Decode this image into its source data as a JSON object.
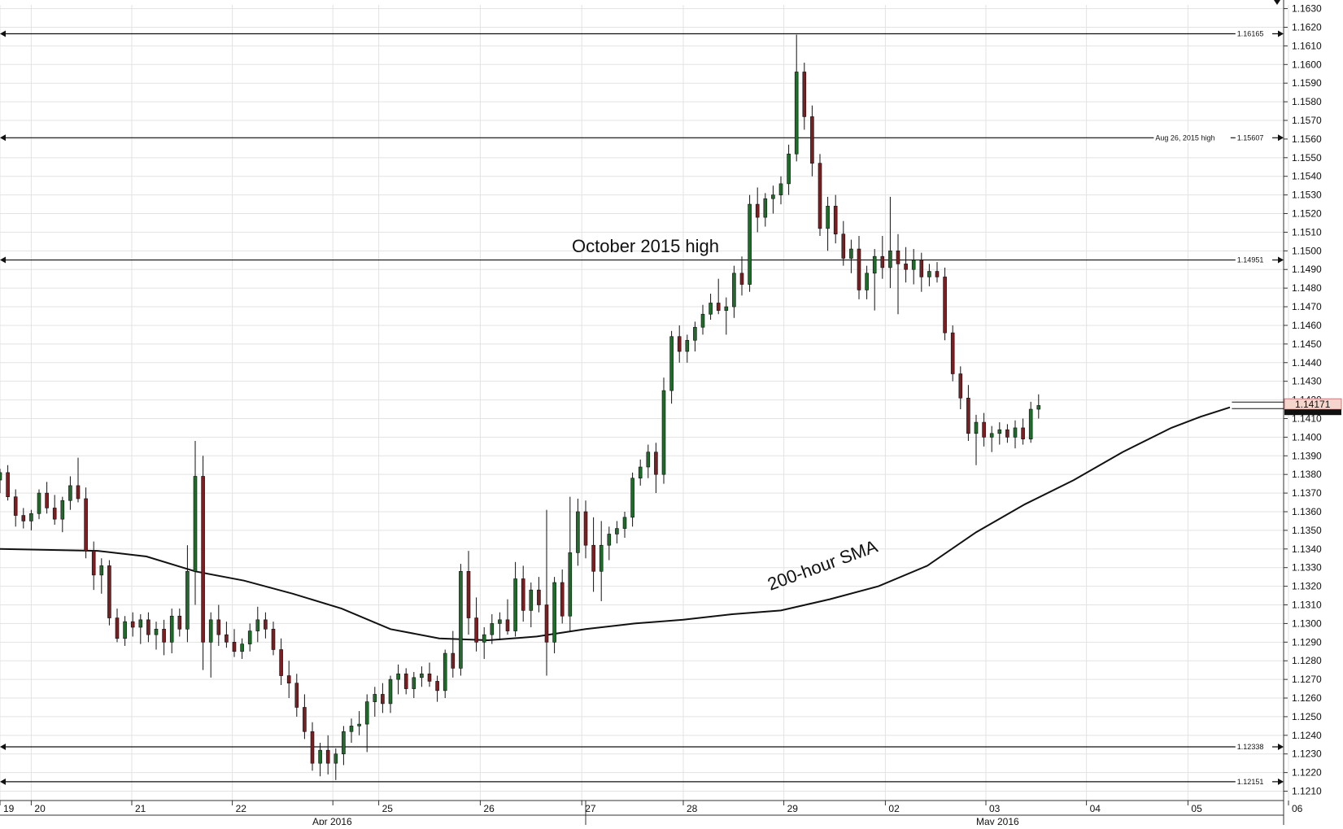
{
  "chart_data": {
    "type": "candlestick",
    "title": "",
    "xlabel": "",
    "ylabel": "",
    "ylim": [
      1.205,
      1.163
    ],
    "y_ticks": [
      "1.1630",
      "1.1620",
      "1.1610",
      "1.1600",
      "1.1590",
      "1.1580",
      "1.1570",
      "1.1560",
      "1.1550",
      "1.1540",
      "1.1530",
      "1.1520",
      "1.1510",
      "1.1500",
      "1.1490",
      "1.1480",
      "1.1470",
      "1.1460",
      "1.1450",
      "1.1440",
      "1.1430",
      "1.1420",
      "1.1410",
      "1.1400",
      "1.1390",
      "1.1380",
      "1.1370",
      "1.1360",
      "1.1350",
      "1.1340",
      "1.1330",
      "1.1320",
      "1.1310",
      "1.1300",
      "1.1290",
      "1.1280",
      "1.1270",
      "1.1260",
      "1.1250",
      "1.1240",
      "1.1230",
      "1.1220",
      "1.1210"
    ],
    "x_day_ticks": [
      "19",
      "20",
      "21",
      "22",
      "",
      "25",
      "26",
      "27",
      "28",
      "29",
      "02",
      "03",
      "04",
      "05",
      "06"
    ],
    "x_month_labels": [
      "Apr 2016",
      "May 2016"
    ],
    "current_price": "1.14171",
    "levels": [
      {
        "name": "level-1-16165",
        "value": 1.16165,
        "label": "1.16165",
        "note": ""
      },
      {
        "name": "level-1-15607",
        "value": 1.15607,
        "label": "1.15607",
        "note": "Aug 26, 2015 high"
      },
      {
        "name": "level-1-14951",
        "value": 1.14951,
        "label": "1.14951",
        "note": ""
      },
      {
        "name": "level-1-12338",
        "value": 1.12338,
        "label": "1.12338",
        "note": ""
      },
      {
        "name": "level-1-12151",
        "value": 1.12151,
        "label": "1.12151",
        "note": ""
      }
    ],
    "annotations": {
      "october_high": "October 2015 high",
      "sma_label": "200-hour SMA"
    },
    "sma_200": [
      [
        19.0,
        1.134
      ],
      [
        20.0,
        1.1339
      ],
      [
        20.5,
        1.1336
      ],
      [
        21.0,
        1.1328
      ],
      [
        21.5,
        1.1323
      ],
      [
        22.0,
        1.1316
      ],
      [
        22.5,
        1.1308
      ],
      [
        23.0,
        1.1297
      ],
      [
        23.5,
        1.1292
      ],
      [
        24.0,
        1.1291
      ],
      [
        24.5,
        1.1293
      ],
      [
        25.0,
        1.1297
      ],
      [
        25.5,
        1.13
      ],
      [
        26.0,
        1.1302
      ],
      [
        26.5,
        1.1305
      ],
      [
        27.0,
        1.1307
      ],
      [
        27.5,
        1.1313
      ],
      [
        28.0,
        1.132
      ],
      [
        28.5,
        1.1331
      ],
      [
        29.0,
        1.1349
      ],
      [
        29.5,
        1.1364
      ],
      [
        30.0,
        1.1377
      ],
      [
        30.5,
        1.1392
      ],
      [
        31.0,
        1.1405
      ],
      [
        31.3,
        1.1411
      ],
      [
        31.6,
        1.1416
      ]
    ],
    "candles": [
      [
        19.0,
        1.1377,
        1.1383,
        1.137,
        1.1381
      ],
      [
        19.08,
        1.1381,
        1.1385,
        1.1366,
        1.1368
      ],
      [
        19.16,
        1.1368,
        1.1372,
        1.1352,
        1.1358
      ],
      [
        19.24,
        1.1358,
        1.1362,
        1.1351,
        1.1355
      ],
      [
        19.32,
        1.1355,
        1.1361,
        1.135,
        1.1359
      ],
      [
        19.4,
        1.1359,
        1.1372,
        1.1356,
        1.137
      ],
      [
        19.48,
        1.137,
        1.1376,
        1.1359,
        1.1362
      ],
      [
        19.56,
        1.1362,
        1.1369,
        1.1353,
        1.1356
      ],
      [
        19.64,
        1.1356,
        1.1368,
        1.1349,
        1.1366
      ],
      [
        19.72,
        1.1366,
        1.1379,
        1.1361,
        1.1374
      ],
      [
        19.8,
        1.1374,
        1.1389,
        1.1365,
        1.1367
      ],
      [
        19.88,
        1.1367,
        1.1373,
        1.1335,
        1.1339
      ],
      [
        19.96,
        1.1339,
        1.1344,
        1.1318,
        1.1326
      ],
      [
        20.04,
        1.1326,
        1.1335,
        1.1316,
        1.1331
      ],
      [
        20.12,
        1.1331,
        1.1334,
        1.1299,
        1.1303
      ],
      [
        20.2,
        1.1303,
        1.1308,
        1.129,
        1.1292
      ],
      [
        20.28,
        1.1292,
        1.1304,
        1.1288,
        1.1301
      ],
      [
        20.36,
        1.1301,
        1.1306,
        1.1293,
        1.1298
      ],
      [
        20.44,
        1.1298,
        1.1305,
        1.1289,
        1.1302
      ],
      [
        20.52,
        1.1302,
        1.1306,
        1.129,
        1.1294
      ],
      [
        20.6,
        1.1294,
        1.1301,
        1.1286,
        1.1297
      ],
      [
        20.68,
        1.1297,
        1.1302,
        1.1283,
        1.129
      ],
      [
        20.76,
        1.129,
        1.1308,
        1.1284,
        1.1304
      ],
      [
        20.84,
        1.1304,
        1.1308,
        1.1293,
        1.1297
      ],
      [
        20.92,
        1.1297,
        1.1342,
        1.129,
        1.1328
      ],
      [
        21.0,
        1.1328,
        1.1398,
        1.131,
        1.1379
      ],
      [
        21.08,
        1.1379,
        1.139,
        1.1275,
        1.129
      ],
      [
        21.16,
        1.129,
        1.1306,
        1.1271,
        1.1302
      ],
      [
        21.24,
        1.1302,
        1.131,
        1.1288,
        1.1294
      ],
      [
        21.32,
        1.1294,
        1.1301,
        1.1287,
        1.129
      ],
      [
        21.4,
        1.129,
        1.1297,
        1.1282,
        1.1285
      ],
      [
        21.48,
        1.1285,
        1.1292,
        1.1281,
        1.1289
      ],
      [
        21.56,
        1.1289,
        1.13,
        1.1285,
        1.1296
      ],
      [
        21.64,
        1.1296,
        1.1309,
        1.129,
        1.1302
      ],
      [
        21.72,
        1.1302,
        1.1306,
        1.1292,
        1.1297
      ],
      [
        21.8,
        1.1297,
        1.1301,
        1.1283,
        1.1286
      ],
      [
        21.88,
        1.1286,
        1.1292,
        1.1267,
        1.1272
      ],
      [
        21.96,
        1.1272,
        1.128,
        1.126,
        1.1268
      ],
      [
        22.04,
        1.1268,
        1.1273,
        1.125,
        1.1255
      ],
      [
        22.12,
        1.1255,
        1.1262,
        1.1238,
        1.1242
      ],
      [
        22.2,
        1.1242,
        1.1247,
        1.1221,
        1.1225
      ],
      [
        22.28,
        1.1225,
        1.1236,
        1.1218,
        1.1232
      ],
      [
        22.36,
        1.1232,
        1.124,
        1.1219,
        1.1225
      ],
      [
        22.44,
        1.1225,
        1.1233,
        1.1216,
        1.123
      ],
      [
        22.52,
        1.123,
        1.1245,
        1.1224,
        1.1242
      ],
      [
        22.6,
        1.1242,
        1.1249,
        1.1236,
        1.1245
      ],
      [
        22.68,
        1.1245,
        1.1253,
        1.124,
        1.1246
      ],
      [
        22.76,
        1.1246,
        1.1262,
        1.1231,
        1.1258
      ],
      [
        22.84,
        1.1258,
        1.1266,
        1.125,
        1.1262
      ],
      [
        22.92,
        1.1262,
        1.1268,
        1.1252,
        1.1257
      ],
      [
        23.0,
        1.1257,
        1.1272,
        1.1252,
        1.127
      ],
      [
        23.08,
        1.127,
        1.1278,
        1.1262,
        1.1273
      ],
      [
        23.16,
        1.1273,
        1.1276,
        1.1262,
        1.1265
      ],
      [
        23.24,
        1.1265,
        1.1274,
        1.126,
        1.1271
      ],
      [
        23.32,
        1.1271,
        1.1277,
        1.1266,
        1.1273
      ],
      [
        23.4,
        1.1273,
        1.1279,
        1.1266,
        1.1269
      ],
      [
        23.48,
        1.1269,
        1.1272,
        1.1258,
        1.1264
      ],
      [
        23.56,
        1.1264,
        1.1286,
        1.126,
        1.1284
      ],
      [
        23.64,
        1.1284,
        1.1296,
        1.1271,
        1.1276
      ],
      [
        23.72,
        1.1276,
        1.1332,
        1.1272,
        1.1328
      ],
      [
        23.8,
        1.1328,
        1.1339,
        1.1294,
        1.1303
      ],
      [
        23.88,
        1.1303,
        1.1314,
        1.1285,
        1.129
      ],
      [
        23.96,
        1.129,
        1.1298,
        1.1281,
        1.1294
      ],
      [
        24.04,
        1.1294,
        1.1305,
        1.1289,
        1.13
      ],
      [
        24.12,
        1.13,
        1.1306,
        1.1291,
        1.1302
      ],
      [
        24.2,
        1.1302,
        1.1313,
        1.1294,
        1.1296
      ],
      [
        24.28,
        1.1296,
        1.1333,
        1.1293,
        1.1324
      ],
      [
        24.36,
        1.1324,
        1.1331,
        1.1301,
        1.1307
      ],
      [
        24.44,
        1.1307,
        1.1322,
        1.1298,
        1.1318
      ],
      [
        24.52,
        1.1318,
        1.1325,
        1.1306,
        1.131
      ],
      [
        24.6,
        1.131,
        1.1361,
        1.1272,
        1.129
      ],
      [
        24.68,
        1.129,
        1.1325,
        1.1284,
        1.1322
      ],
      [
        24.76,
        1.1322,
        1.1329,
        1.13,
        1.1304
      ],
      [
        24.84,
        1.1304,
        1.1368,
        1.1296,
        1.1338
      ],
      [
        24.92,
        1.1338,
        1.1367,
        1.1331,
        1.136
      ],
      [
        25.0,
        1.136,
        1.1366,
        1.1335,
        1.1342
      ],
      [
        25.08,
        1.1342,
        1.1357,
        1.1317,
        1.1328
      ],
      [
        25.16,
        1.1328,
        1.1355,
        1.1312,
        1.1342
      ],
      [
        25.24,
        1.1342,
        1.1352,
        1.1334,
        1.1348
      ],
      [
        25.32,
        1.1348,
        1.1355,
        1.1343,
        1.1351
      ],
      [
        25.4,
        1.1351,
        1.136,
        1.1346,
        1.1357
      ],
      [
        25.48,
        1.1357,
        1.1381,
        1.1352,
        1.1378
      ],
      [
        25.56,
        1.1378,
        1.1388,
        1.1374,
        1.1384
      ],
      [
        25.64,
        1.1384,
        1.1396,
        1.1378,
        1.1392
      ],
      [
        25.72,
        1.1392,
        1.1397,
        1.137,
        1.138
      ],
      [
        25.8,
        1.138,
        1.1432,
        1.1375,
        1.1425
      ],
      [
        25.88,
        1.1425,
        1.1457,
        1.1418,
        1.1454
      ],
      [
        25.96,
        1.1454,
        1.146,
        1.144,
        1.1446
      ],
      [
        26.04,
        1.1446,
        1.1455,
        1.144,
        1.1452
      ],
      [
        26.12,
        1.1452,
        1.1462,
        1.1446,
        1.1459
      ],
      [
        26.2,
        1.1459,
        1.1471,
        1.1455,
        1.1466
      ],
      [
        26.28,
        1.1466,
        1.1477,
        1.1463,
        1.1472
      ],
      [
        26.36,
        1.1472,
        1.1485,
        1.1466,
        1.1468
      ],
      [
        26.44,
        1.1468,
        1.1475,
        1.1455,
        1.147
      ],
      [
        26.52,
        1.147,
        1.1492,
        1.1464,
        1.1488
      ],
      [
        26.6,
        1.1488,
        1.1497,
        1.1476,
        1.1482
      ],
      [
        26.68,
        1.1482,
        1.153,
        1.1478,
        1.1525
      ],
      [
        26.76,
        1.1525,
        1.1534,
        1.151,
        1.1518
      ],
      [
        26.84,
        1.1518,
        1.1531,
        1.1513,
        1.1528
      ],
      [
        26.92,
        1.1528,
        1.1535,
        1.152,
        1.153
      ],
      [
        27.0,
        1.153,
        1.154,
        1.1525,
        1.1536
      ],
      [
        27.08,
        1.1536,
        1.1557,
        1.153,
        1.1552
      ],
      [
        27.16,
        1.1552,
        1.1616,
        1.1548,
        1.1596
      ],
      [
        27.24,
        1.1596,
        1.1601,
        1.1565,
        1.1572
      ],
      [
        27.32,
        1.1572,
        1.1578,
        1.154,
        1.1547
      ],
      [
        27.4,
        1.1547,
        1.1552,
        1.1508,
        1.1512
      ],
      [
        27.48,
        1.1512,
        1.1529,
        1.15,
        1.1524
      ],
      [
        27.56,
        1.1524,
        1.153,
        1.1504,
        1.1509
      ],
      [
        27.64,
        1.1509,
        1.1516,
        1.1492,
        1.1496
      ],
      [
        27.72,
        1.1496,
        1.1506,
        1.1488,
        1.1501
      ],
      [
        27.8,
        1.1501,
        1.1508,
        1.1474,
        1.1479
      ],
      [
        27.88,
        1.1479,
        1.1492,
        1.1474,
        1.1488
      ],
      [
        27.96,
        1.1488,
        1.1501,
        1.1468,
        1.1497
      ],
      [
        28.04,
        1.1497,
        1.1508,
        1.1485,
        1.1491
      ],
      [
        28.12,
        1.1491,
        1.1529,
        1.148,
        1.15
      ],
      [
        28.2,
        1.15,
        1.1509,
        1.1466,
        1.1493
      ],
      [
        28.28,
        1.1493,
        1.1502,
        1.1483,
        1.149
      ],
      [
        28.36,
        1.149,
        1.1501,
        1.1482,
        1.1495
      ],
      [
        28.44,
        1.1495,
        1.1499,
        1.1478,
        1.1486
      ],
      [
        28.52,
        1.1486,
        1.1493,
        1.1481,
        1.1489
      ],
      [
        28.6,
        1.1489,
        1.1494,
        1.1483,
        1.1486
      ],
      [
        28.68,
        1.1486,
        1.1491,
        1.1452,
        1.1456
      ],
      [
        28.76,
        1.1456,
        1.146,
        1.143,
        1.1434
      ],
      [
        28.84,
        1.1434,
        1.1438,
        1.1415,
        1.1421
      ],
      [
        28.92,
        1.1421,
        1.1428,
        1.1398,
        1.1402
      ],
      [
        29.0,
        1.1402,
        1.1412,
        1.1385,
        1.1408
      ],
      [
        29.08,
        1.1408,
        1.1413,
        1.1395,
        1.14
      ],
      [
        29.16,
        1.14,
        1.1406,
        1.1392,
        1.1402
      ],
      [
        29.24,
        1.1402,
        1.1408,
        1.1396,
        1.1404
      ],
      [
        29.32,
        1.1404,
        1.1407,
        1.1397,
        1.14
      ],
      [
        29.4,
        1.14,
        1.1409,
        1.1394,
        1.1405
      ],
      [
        29.48,
        1.1405,
        1.141,
        1.1396,
        1.1399
      ],
      [
        29.56,
        1.1399,
        1.1419,
        1.1397,
        1.1415
      ],
      [
        29.64,
        1.1415,
        1.1423,
        1.141,
        1.1417
      ]
    ]
  }
}
